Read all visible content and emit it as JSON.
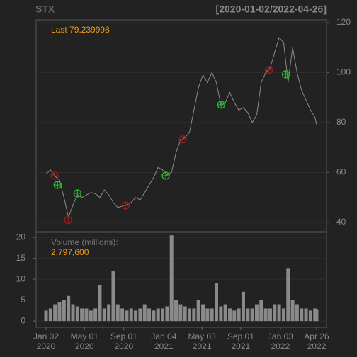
{
  "chart_data": [
    {
      "type": "line",
      "title": "STX",
      "subtitle": "[2020-01-02/2022-04-26]",
      "last_label": "Last",
      "last_value": 79.239998,
      "color": "#8a8a8a",
      "grid": true,
      "x": [
        "2020-01-02",
        "2020-01-16",
        "2020-01-30",
        "2020-02-13",
        "2020-02-27",
        "2020-03-12",
        "2020-03-26",
        "2020-04-09",
        "2020-04-23",
        "2020-05-07",
        "2020-05-21",
        "2020-06-04",
        "2020-06-18",
        "2020-07-02",
        "2020-07-16",
        "2020-07-30",
        "2020-08-13",
        "2020-08-27",
        "2020-09-10",
        "2020-09-24",
        "2020-10-08",
        "2020-10-22",
        "2020-11-05",
        "2020-11-19",
        "2020-12-03",
        "2020-12-17",
        "2020-12-31",
        "2021-01-14",
        "2021-01-28",
        "2021-02-11",
        "2021-02-25",
        "2021-03-11",
        "2021-03-25",
        "2021-04-08",
        "2021-04-22",
        "2021-05-06",
        "2021-05-20",
        "2021-06-03",
        "2021-06-17",
        "2021-07-01",
        "2021-07-15",
        "2021-07-29",
        "2021-08-12",
        "2021-08-26",
        "2021-09-09",
        "2021-09-23",
        "2021-10-07",
        "2021-10-21",
        "2021-11-04",
        "2021-11-18",
        "2021-12-02",
        "2021-12-16",
        "2021-12-30",
        "2022-01-13",
        "2022-01-27",
        "2022-02-10",
        "2022-02-24",
        "2022-03-10",
        "2022-03-24",
        "2022-04-07",
        "2022-04-21",
        "2022-04-26"
      ],
      "values": [
        59.5,
        61,
        58.5,
        57,
        50,
        42,
        47,
        51,
        50,
        51,
        52,
        51.5,
        50,
        53,
        51,
        48,
        46,
        46.5,
        47,
        48,
        50,
        49,
        52,
        55,
        58,
        62,
        61,
        59,
        60,
        68,
        73,
        74,
        76,
        85,
        94,
        99,
        96,
        100,
        96,
        87,
        88,
        92,
        88,
        85,
        86,
        84,
        80,
        83,
        96,
        100,
        102,
        108,
        114,
        112,
        96,
        110,
        100,
        93,
        89,
        85,
        82,
        79.239998
      ],
      "markers": [
        {
          "color": "#a01818",
          "x": [
            "2020-01-29",
            "2020-03-11",
            "2020-09-07",
            "2021-03-04",
            "2021-11-28"
          ],
          "values": [
            58.7,
            40.9,
            46.8,
            73.2,
            101
          ]
        },
        {
          "color": "#22c322",
          "x": [
            "2020-02-07",
            "2020-04-09",
            "2021-01-10",
            "2021-07-02",
            "2022-01-20"
          ],
          "values": [
            55,
            51.6,
            58.7,
            87.1,
            99.3
          ]
        }
      ],
      "xlim": [
        "2019-12-02",
        "2022-05-27"
      ],
      "ylim": [
        36.3,
        121.1
      ],
      "yticks": [
        40,
        60,
        80,
        100,
        120
      ]
    },
    {
      "type": "bar",
      "label": "Volume (millions):",
      "last_label": "2,797,600",
      "color": "#8a8a8a",
      "grid": true,
      "x": [
        "2020-01-02",
        "2020-01-16",
        "2020-01-30",
        "2020-02-13",
        "2020-02-27",
        "2020-03-12",
        "2020-03-26",
        "2020-04-09",
        "2020-04-23",
        "2020-05-07",
        "2020-05-21",
        "2020-06-04",
        "2020-06-18",
        "2020-07-02",
        "2020-07-16",
        "2020-07-30",
        "2020-08-13",
        "2020-08-27",
        "2020-09-10",
        "2020-09-24",
        "2020-10-08",
        "2020-10-22",
        "2020-11-05",
        "2020-11-19",
        "2020-12-03",
        "2020-12-17",
        "2020-12-31",
        "2021-01-14",
        "2021-01-28",
        "2021-02-11",
        "2021-02-25",
        "2021-03-11",
        "2021-03-25",
        "2021-04-08",
        "2021-04-22",
        "2021-05-06",
        "2021-05-20",
        "2021-06-03",
        "2021-06-17",
        "2021-07-01",
        "2021-07-15",
        "2021-07-29",
        "2021-08-12",
        "2021-08-26",
        "2021-09-09",
        "2021-09-23",
        "2021-10-07",
        "2021-10-21",
        "2021-11-04",
        "2021-11-18",
        "2021-12-02",
        "2021-12-16",
        "2021-12-30",
        "2022-01-13",
        "2022-01-27",
        "2022-02-10",
        "2022-02-24",
        "2022-03-10",
        "2022-03-24",
        "2022-04-07",
        "2022-04-21",
        "2022-04-26"
      ],
      "values": [
        2.5,
        3,
        4,
        4.5,
        5,
        6,
        4,
        3.5,
        3,
        3,
        2.5,
        3,
        8.5,
        3,
        4,
        12,
        4,
        3,
        2.5,
        3,
        2.5,
        3,
        4,
        3,
        2.5,
        3,
        3,
        3.5,
        20.5,
        5,
        4,
        3.5,
        3,
        3,
        5,
        4,
        3,
        3,
        9,
        3.5,
        4,
        3,
        2.5,
        3,
        7,
        3,
        3,
        4,
        5,
        3,
        3,
        4,
        4,
        3,
        12.5,
        5,
        4,
        3,
        3,
        2.5,
        3,
        2.7976
      ],
      "xlim": [
        "2019-12-02",
        "2022-05-27"
      ],
      "ylim": [
        -1.5,
        21.2
      ],
      "yticks": [
        0,
        5,
        10,
        15,
        20
      ],
      "xticks": [
        {
          "value": "2020-01-02",
          "label": "Jan 02",
          "year": "2020"
        },
        {
          "value": "2020-05-01",
          "label": "May 01",
          "year": "2020"
        },
        {
          "value": "2020-09-01",
          "label": "Sep 01",
          "year": "2020"
        },
        {
          "value": "2021-01-04",
          "label": "Jan 04",
          "year": "2021"
        },
        {
          "value": "2021-05-03",
          "label": "May 03",
          "year": "2021"
        },
        {
          "value": "2021-09-01",
          "label": "Sep 01",
          "year": "2021"
        },
        {
          "value": "2022-01-03",
          "label": "Jan 03",
          "year": "2022"
        },
        {
          "value": "2022-04-26",
          "label": "Apr 26",
          "year": "2022"
        }
      ]
    }
  ]
}
